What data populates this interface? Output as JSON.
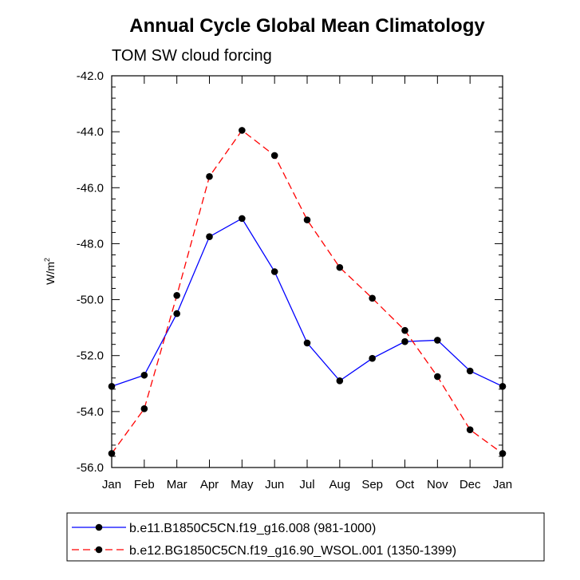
{
  "chart_data": {
    "type": "line",
    "title": "Annual Cycle Global Mean Climatology",
    "subtitle": "TOM SW cloud forcing",
    "xlabel": "",
    "ylabel": "W/m",
    "ylabel_superscript": "2",
    "categories": [
      "Jan",
      "Feb",
      "Mar",
      "Apr",
      "May",
      "Jun",
      "Jul",
      "Aug",
      "Sep",
      "Oct",
      "Nov",
      "Dec",
      "Jan"
    ],
    "ylim": [
      -56.0,
      -42.0
    ],
    "yticks": [
      -56.0,
      -54.0,
      -52.0,
      -50.0,
      -48.0,
      -46.0,
      -44.0,
      -42.0
    ],
    "ytick_labels": [
      "-56.0",
      "-54.0",
      "-52.0",
      "-50.0",
      "-48.0",
      "-46.0",
      "-44.0",
      "-42.0"
    ],
    "grid": false,
    "legend_position": "bottom",
    "series": [
      {
        "name": "b.e11.B1850C5CN.f19_g16.008 (981-1000)",
        "color": "#0000ff",
        "dash": "solid",
        "values": [
          -53.1,
          -52.7,
          -50.5,
          -47.75,
          -47.1,
          -49.0,
          -51.55,
          -52.9,
          -52.1,
          -51.5,
          -51.45,
          -52.55,
          -53.1
        ]
      },
      {
        "name": "b.e12.BG1850C5CN.f19_g16.90_WSOL.001 (1350-1399)",
        "color": "#ff0000",
        "dash": "dashed",
        "values": [
          -55.5,
          -53.9,
          -49.85,
          -45.6,
          -43.95,
          -44.85,
          -47.15,
          -48.85,
          -49.95,
          -51.1,
          -52.75,
          -54.65,
          -55.5
        ]
      }
    ]
  }
}
